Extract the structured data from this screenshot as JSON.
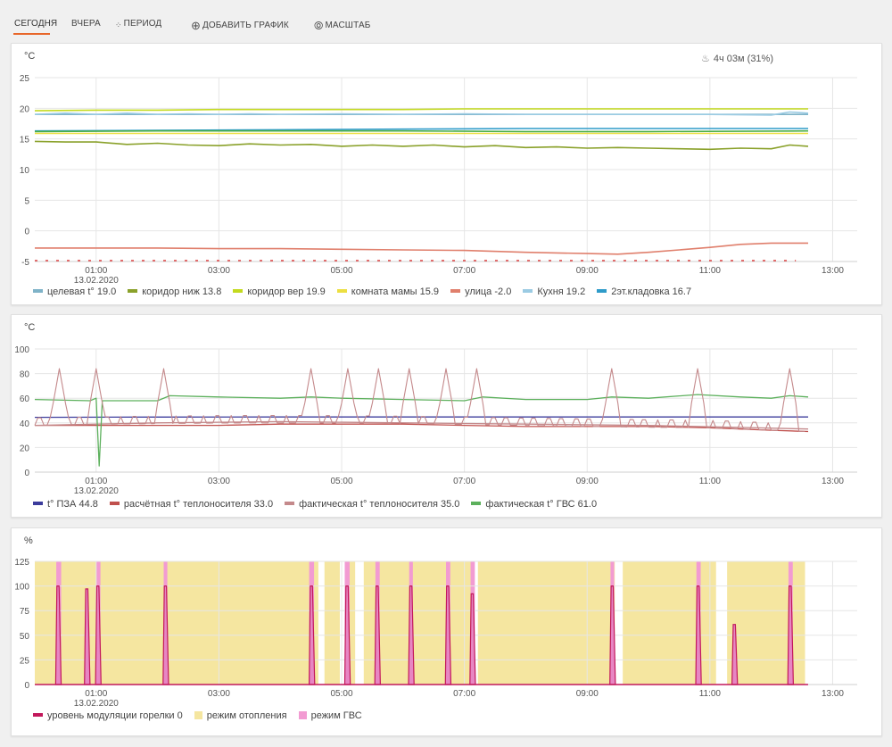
{
  "toolbar": {
    "today": "СЕГОДНЯ",
    "yesterday": "ВЧЕРА",
    "period": "ПЕРИОД",
    "add_chart": "ДОБАВИТЬ ГРАФИК",
    "scale": "МАСШТАБ",
    "accent": "#e8672a"
  },
  "chart_data": [
    {
      "type": "line",
      "unit_label": "°C",
      "badge": "4ч 03м (31%)",
      "ylim": [
        -5,
        25
      ],
      "yticks": [
        -5,
        0,
        5,
        10,
        15,
        20,
        25
      ],
      "ytick_labels": [
        "-5",
        "0",
        "5",
        "10",
        "15",
        "20",
        "25"
      ],
      "xlim": [
        0,
        13.4
      ],
      "xticks": [
        1,
        3,
        5,
        7,
        9,
        11,
        13
      ],
      "xtick_labels": [
        "01:00",
        "03:00",
        "05:00",
        "07:00",
        "09:00",
        "11:00",
        "13:00"
      ],
      "date_label": "13.02.2020",
      "grid": true,
      "legend_position": "bottom",
      "series": [
        {
          "name": "целевая t° 19.0",
          "color": "#7fb3c8",
          "x": [
            0,
            2,
            4,
            6,
            8,
            10,
            12.6
          ],
          "y": [
            19.0,
            19.0,
            19.0,
            19.0,
            19.0,
            19.0,
            19.0
          ]
        },
        {
          "name": "коридор ниж 13.8",
          "color": "#8aa12a",
          "x": [
            0,
            0.5,
            1,
            1.5,
            2,
            2.5,
            3,
            3.5,
            4,
            4.5,
            5,
            5.5,
            6,
            6.5,
            7,
            7.5,
            8,
            8.5,
            9,
            9.5,
            10,
            10.5,
            11,
            11.5,
            12,
            12.3,
            12.6
          ],
          "y": [
            14.6,
            14.5,
            14.5,
            14.1,
            14.3,
            14.0,
            13.9,
            14.2,
            14.0,
            14.1,
            13.8,
            14.0,
            13.8,
            14.0,
            13.7,
            13.9,
            13.6,
            13.7,
            13.5,
            13.6,
            13.5,
            13.4,
            13.3,
            13.5,
            13.4,
            14.0,
            13.8
          ]
        },
        {
          "name": "коридор вер 19.9",
          "color": "#c3da1e",
          "x": [
            0,
            1,
            2,
            3,
            4,
            5,
            6,
            7,
            8,
            9,
            10,
            11,
            12,
            12.6
          ],
          "y": [
            19.6,
            19.7,
            19.7,
            19.8,
            19.8,
            19.8,
            19.8,
            19.9,
            19.9,
            19.9,
            19.9,
            19.9,
            19.9,
            19.9
          ]
        },
        {
          "name": "комната мамы 15.9",
          "color": "#ecdf42",
          "x": [
            0,
            2,
            4,
            6,
            8,
            10,
            12.6
          ],
          "y": [
            15.9,
            15.9,
            15.9,
            15.9,
            15.9,
            15.9,
            15.9
          ]
        },
        {
          "name": "улица -2.0",
          "color": "#e07f6c",
          "x": [
            0,
            1,
            2,
            3,
            4,
            5,
            6,
            7,
            8,
            9,
            9.5,
            10,
            10.5,
            11,
            11.5,
            12,
            12.6
          ],
          "y": [
            -2.8,
            -2.8,
            -2.8,
            -2.9,
            -2.9,
            -3.0,
            -3.1,
            -3.2,
            -3.5,
            -3.7,
            -3.8,
            -3.5,
            -3.1,
            -2.7,
            -2.2,
            -2.0,
            -2.0
          ]
        },
        {
          "name": "Кухня 19.2",
          "color": "#9bcbe3",
          "x": [
            0,
            0.5,
            1,
            1.5,
            2,
            2.5,
            3,
            3.5,
            4,
            5,
            6,
            7,
            8,
            9,
            10,
            11,
            12,
            12.3,
            12.6
          ],
          "y": [
            19.0,
            19.2,
            19.0,
            19.2,
            19.0,
            19.1,
            19.0,
            19.1,
            19.0,
            19.1,
            19.0,
            19.1,
            19.0,
            19.0,
            19.0,
            19.0,
            18.9,
            19.4,
            19.2
          ]
        },
        {
          "name": "2эт.кладовка 16.7",
          "color": "#2e9bc9",
          "x": [
            0,
            2,
            4,
            6,
            8,
            10,
            12.6
          ],
          "y": [
            16.3,
            16.4,
            16.5,
            16.6,
            16.7,
            16.7,
            16.7
          ]
        },
        {
          "name": "",
          "color": "#4aae4a",
          "x": [
            0,
            2,
            4,
            6,
            8,
            10,
            12.6
          ],
          "y": [
            16.2,
            16.3,
            16.3,
            16.3,
            16.2,
            16.2,
            16.3
          ]
        }
      ],
      "legend": [
        {
          "label": "целевая t° 19.0",
          "color": "#7fb3c8"
        },
        {
          "label": "коридор ниж 13.8",
          "color": "#8aa12a"
        },
        {
          "label": "коридор вер 19.9",
          "color": "#c3da1e"
        },
        {
          "label": "комната мамы 15.9",
          "color": "#ecdf42"
        },
        {
          "label": "улица -2.0",
          "color": "#e07f6c"
        },
        {
          "label": "Кухня 19.2",
          "color": "#9bcbe3"
        },
        {
          "label": "2эт.кладовка 16.7",
          "color": "#2e9bc9"
        }
      ]
    },
    {
      "type": "line",
      "unit_label": "°C",
      "ylim": [
        0,
        100
      ],
      "yticks": [
        0,
        20,
        40,
        60,
        80,
        100
      ],
      "ytick_labels": [
        "0",
        "20",
        "40",
        "60",
        "80",
        "100"
      ],
      "xlim": [
        0,
        13.4
      ],
      "xticks": [
        1,
        3,
        5,
        7,
        9,
        11,
        13
      ],
      "xtick_labels": [
        "01:00",
        "03:00",
        "05:00",
        "07:00",
        "09:00",
        "11:00",
        "13:00"
      ],
      "date_label": "13.02.2020",
      "grid": true,
      "legend_position": "bottom",
      "spikes": [
        0.4,
        1.0,
        2.1,
        4.5,
        5.1,
        5.6,
        6.1,
        6.7,
        7.2,
        9.4,
        10.8,
        12.3
      ],
      "series": [
        {
          "name": "t° ПЗА 44.8",
          "color": "#3c3c9c",
          "x": [
            0,
            2,
            4,
            6,
            8,
            10,
            12.6
          ],
          "y": [
            44.5,
            44.7,
            44.8,
            44.8,
            44.8,
            44.8,
            44.8
          ]
        },
        {
          "name": "расчётная t° теплоносителя 33.0",
          "color": "#c0504d",
          "x": [
            0,
            1,
            2,
            3,
            4,
            5,
            6,
            7,
            8,
            9,
            10,
            11,
            11.5,
            12,
            12.6
          ],
          "y": [
            38,
            38,
            38,
            38,
            39,
            39,
            39,
            38,
            37,
            37,
            37,
            36,
            35,
            34,
            33
          ]
        },
        {
          "name": "фактическая t° теплоносителя 35.0",
          "color": "#c4898b",
          "x": [
            0,
            2,
            4,
            6,
            8,
            10,
            12.6
          ],
          "y": [
            38,
            40,
            41,
            40,
            39,
            38,
            35
          ]
        },
        {
          "name": "фактическая t° ГВС 61.0",
          "color": "#5cb05c",
          "x": [
            0,
            0.9,
            1.0,
            1.05,
            1.1,
            1.5,
            2.0,
            2.2,
            3.0,
            4.0,
            4.5,
            5.0,
            6.0,
            7.0,
            7.3,
            8.0,
            9.0,
            9.4,
            10.0,
            10.8,
            11.5,
            12.0,
            12.3,
            12.6
          ],
          "y": [
            59,
            58,
            60,
            5,
            58,
            58,
            58,
            62,
            61,
            60,
            61,
            60,
            59,
            58,
            61,
            59,
            59,
            61,
            60,
            63,
            61,
            60,
            62,
            61
          ]
        }
      ],
      "legend": [
        {
          "label": "t° ПЗА 44.8",
          "color": "#3c3c9c"
        },
        {
          "label": "расчётная t° теплоносителя 33.0",
          "color": "#c0504d"
        },
        {
          "label": "фактическая t° теплоносителя 35.0",
          "color": "#c4898b"
        },
        {
          "label": "фактическая t° ГВС 61.0",
          "color": "#5cb05c"
        }
      ]
    },
    {
      "type": "area",
      "unit_label": "%",
      "ylim": [
        0,
        125
      ],
      "yticks": [
        0,
        25,
        50,
        75,
        100,
        125
      ],
      "ytick_labels": [
        "0",
        "25",
        "50",
        "75",
        "100",
        "125"
      ],
      "xlim": [
        0,
        13.4
      ],
      "xticks": [
        1,
        3,
        5,
        7,
        9,
        11,
        13
      ],
      "xtick_labels": [
        "01:00",
        "03:00",
        "05:00",
        "07:00",
        "09:00",
        "11:00",
        "13:00"
      ],
      "date_label": "13.02.2020",
      "grid": true,
      "legend_position": "bottom",
      "heating_intervals": [
        [
          0,
          4.62
        ],
        [
          4.72,
          4.97
        ],
        [
          5.1,
          5.22
        ],
        [
          5.36,
          7.15
        ],
        [
          7.22,
          9.45
        ],
        [
          9.58,
          11.1
        ],
        [
          11.28,
          12.55
        ]
      ],
      "dhw_intervals": [
        [
          0.35,
          0.43
        ],
        [
          1.0,
          1.07
        ],
        [
          2.1,
          2.16
        ],
        [
          4.47,
          4.55
        ],
        [
          5.05,
          5.13
        ],
        [
          5.55,
          5.62
        ],
        [
          6.1,
          6.16
        ],
        [
          6.7,
          6.77
        ],
        [
          7.1,
          7.17
        ],
        [
          9.38,
          9.44
        ],
        [
          10.78,
          10.85
        ],
        [
          12.28,
          12.35
        ]
      ],
      "modulation_peaks": [
        [
          0.38,
          100
        ],
        [
          0.85,
          97
        ],
        [
          1.03,
          100
        ],
        [
          2.13,
          100
        ],
        [
          4.51,
          100
        ],
        [
          5.09,
          100
        ],
        [
          5.58,
          100
        ],
        [
          6.13,
          100
        ],
        [
          6.73,
          100
        ],
        [
          7.13,
          92
        ],
        [
          9.41,
          100
        ],
        [
          10.81,
          100
        ],
        [
          11.4,
          61
        ],
        [
          12.31,
          100
        ]
      ],
      "modulation_current": 0,
      "legend": [
        {
          "label": "уровень модуляции горелки 0",
          "color": "#c2185b",
          "kind": "line"
        },
        {
          "label": "режим отопления",
          "color": "#f5e6a0",
          "kind": "box"
        },
        {
          "label": "режим ГВС",
          "color": "#f29bd2",
          "kind": "box"
        }
      ]
    }
  ]
}
